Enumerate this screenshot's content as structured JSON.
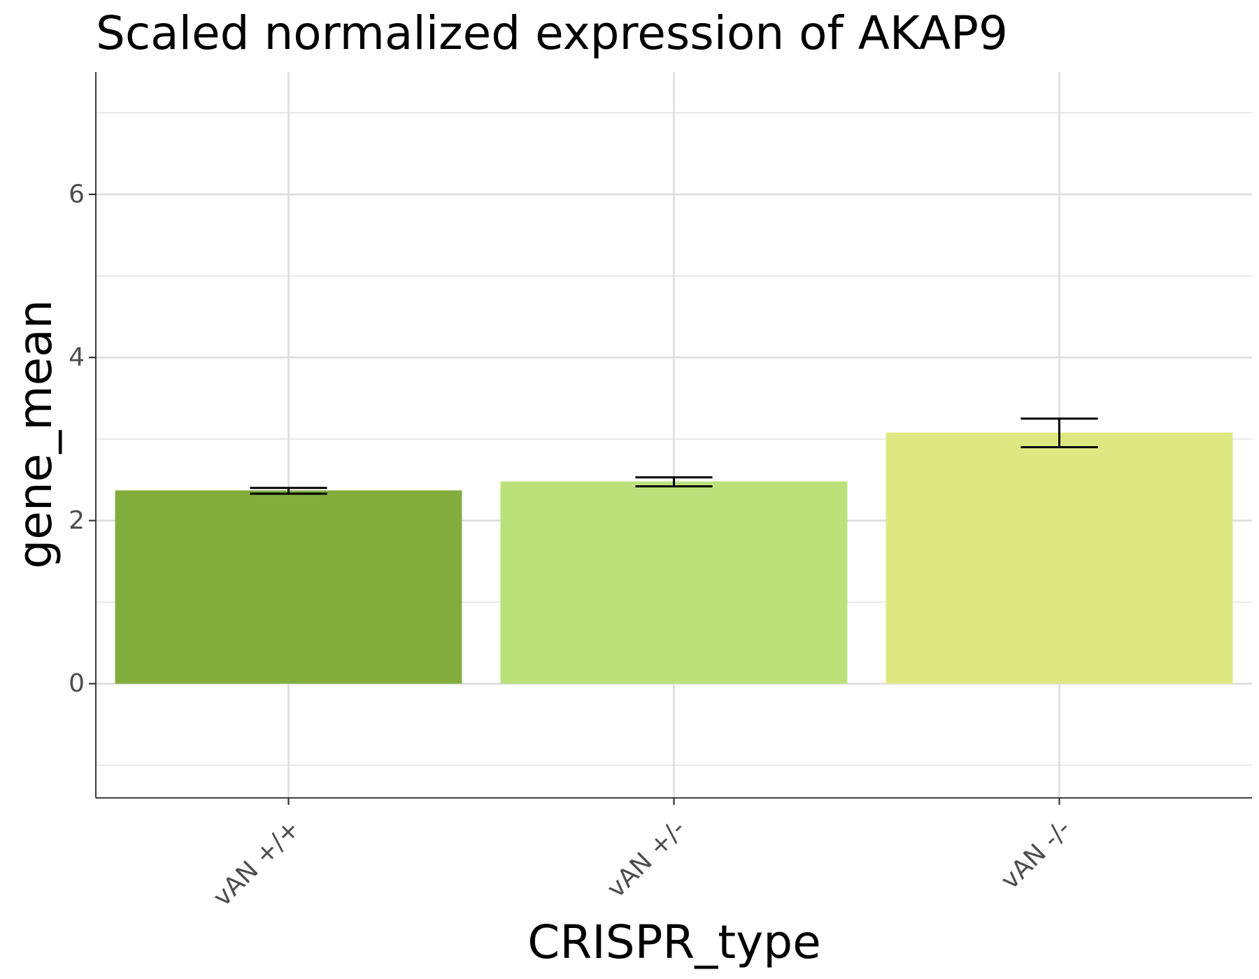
{
  "chart_data": {
    "type": "bar",
    "title": "Scaled normalized expression of AKAP9",
    "xlabel": "CRISPR_type",
    "ylabel": "gene_mean",
    "categories": [
      "vAN +/+",
      "vAN +/-",
      "vAN -/-"
    ],
    "values": [
      2.37,
      2.48,
      3.08
    ],
    "error_low": [
      2.33,
      2.42,
      2.9
    ],
    "error_high": [
      2.4,
      2.53,
      3.25
    ],
    "colors": [
      "#82ad3c",
      "#bbe27a",
      "#dee883"
    ],
    "ylim": [
      -1.4,
      7.5
    ],
    "y_major_ticks": [
      0,
      2,
      4,
      6
    ],
    "y_tick_labels": [
      "0",
      "2",
      "4",
      "6"
    ],
    "y_minor_ticks": [
      -1,
      1,
      3,
      5,
      7
    ],
    "grid": true,
    "legend": "none"
  }
}
